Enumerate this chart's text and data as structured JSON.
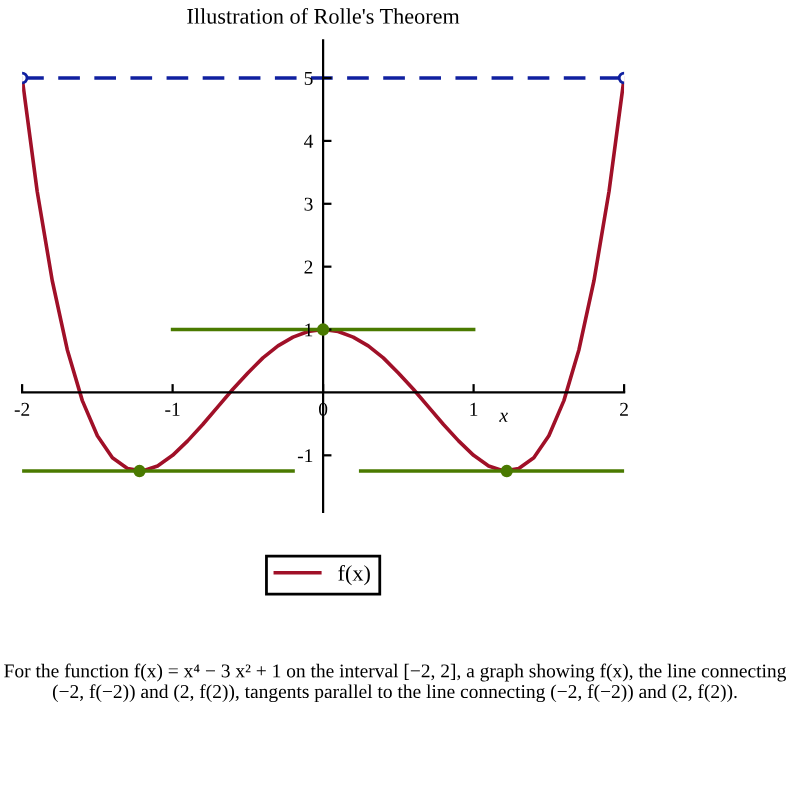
{
  "chart_data": {
    "type": "line",
    "title": "Illustration of Rolle's Theorem",
    "xlabel": "x",
    "xlim": [
      -2,
      2
    ],
    "ylim": [
      -1.9,
      5.6
    ],
    "xticks": [
      -2,
      -1,
      0,
      1,
      2
    ],
    "yticks": [
      -1,
      1,
      2,
      3,
      4,
      5
    ],
    "legend": "bottom",
    "series": [
      {
        "name": "f(x)",
        "color": "#a01028",
        "x": [
          -2,
          -1.9,
          -1.8,
          -1.7,
          -1.6,
          -1.5,
          -1.4,
          -1.3,
          -1.2,
          -1.1,
          -1,
          -0.9,
          -0.8,
          -0.7,
          -0.6,
          -0.5,
          -0.4,
          -0.3,
          -0.2,
          -0.1,
          0,
          0.1,
          0.2,
          0.3,
          0.4,
          0.5,
          0.6,
          0.7,
          0.8,
          0.9,
          1,
          1.1,
          1.2,
          1.3,
          1.4,
          1.5,
          1.6,
          1.7,
          1.8,
          1.9,
          2
        ],
        "values": [
          5,
          3.2,
          1.78,
          0.68,
          -0.13,
          -0.69,
          -1.04,
          -1.21,
          -1.25,
          -1.17,
          -1,
          -0.77,
          -0.51,
          -0.23,
          0.05,
          0.31,
          0.55,
          0.74,
          0.88,
          0.97,
          1,
          0.97,
          0.88,
          0.74,
          0.55,
          0.31,
          0.05,
          -0.23,
          -0.51,
          -0.77,
          -1,
          -1.17,
          -1.25,
          -1.21,
          -1.04,
          -0.69,
          -0.13,
          0.68,
          1.78,
          3.2,
          5
        ]
      },
      {
        "color": "#1020a0",
        "x": [
          -2,
          2
        ],
        "values": [
          5,
          5
        ],
        "line_style": "dashed",
        "marker": "circle"
      },
      {
        "color": "#4a7a00",
        "x": [
          -1,
          1
        ],
        "values": [
          1,
          1
        ]
      },
      {
        "color": "#4a7a00",
        "x": [
          -2,
          -0.2
        ],
        "values": [
          -1.25,
          -1.25
        ]
      },
      {
        "color": "#4a7a00",
        "x": [
          0.25,
          2
        ],
        "values": [
          -1.25,
          -1.25
        ]
      },
      {
        "type": "scatter",
        "color": "#4a7a00",
        "x": [
          -1.22,
          0,
          1.22
        ],
        "values": [
          -1.25,
          1,
          -1.25
        ],
        "marker": "circle"
      }
    ],
    "annotations": [
      "For the function f(x) = x⁴ − 3 x² + 1 on the interval [−2, 2], a graph showing f(x), the line connecting (−2, f(−2)) and (2, f(2)), tangents parallel to the line connecting (−2, f(−2)) and (2, f(2))."
    ]
  }
}
